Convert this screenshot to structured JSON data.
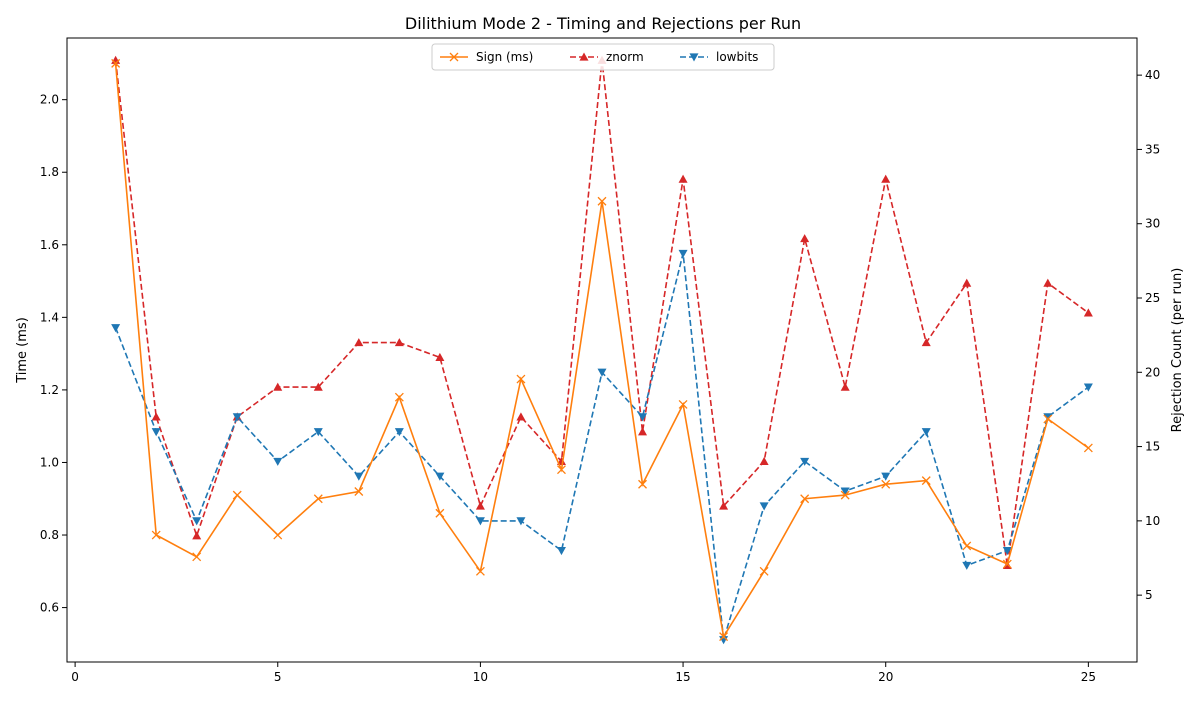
{
  "chart_data": {
    "type": "line",
    "title": "Dilithium Mode 2 - Timing and Rejections per Run",
    "xlabel": "",
    "ylabel_left": "Time (ms)",
    "ylabel_right": "Rejection Count (per run)",
    "xlim": [
      -0.2,
      26.2
    ],
    "ylim_left": [
      0.45,
      2.17
    ],
    "ylim_right": [
      0.5,
      42.5
    ],
    "x_ticks": [
      0,
      5,
      10,
      15,
      20,
      25
    ],
    "y_left_ticks": [
      0.6,
      0.8,
      1.0,
      1.2,
      1.4,
      1.6,
      1.8,
      2.0
    ],
    "y_right_ticks": [
      5,
      10,
      15,
      20,
      25,
      30,
      35,
      40
    ],
    "grid": false,
    "legend_placement": "top-center",
    "x": [
      1,
      2,
      3,
      4,
      5,
      6,
      7,
      8,
      9,
      10,
      11,
      12,
      13,
      14,
      15,
      16,
      17,
      18,
      19,
      20,
      21,
      22,
      23,
      24,
      25
    ],
    "series": [
      {
        "name": "Sign (ms)",
        "axis": "left",
        "color": "#ff7f0e",
        "marker": "x",
        "linestyle": "solid",
        "values": [
          2.1,
          0.8,
          0.74,
          0.91,
          0.8,
          0.9,
          0.92,
          1.18,
          0.86,
          0.7,
          1.23,
          0.98,
          1.72,
          0.94,
          1.16,
          0.52,
          0.7,
          0.9,
          0.91,
          0.94,
          0.95,
          0.77,
          0.72,
          1.12,
          1.04
        ]
      },
      {
        "name": "znorm",
        "axis": "right",
        "color": "#d62728",
        "marker": "triangle-up",
        "linestyle": "dashed",
        "values": [
          41,
          17,
          9,
          17,
          19,
          19,
          22,
          22,
          21,
          11,
          17,
          14,
          41,
          16,
          33,
          11,
          14,
          29,
          19,
          33,
          22,
          26,
          7,
          26,
          24
        ]
      },
      {
        "name": "lowbits",
        "axis": "right",
        "color": "#1f77b4",
        "marker": "triangle-down",
        "linestyle": "dashed",
        "values": [
          23,
          16,
          10,
          17,
          14,
          16,
          13,
          16,
          13,
          10,
          10,
          8,
          20,
          17,
          28,
          2,
          11,
          14,
          12,
          13,
          16,
          7,
          8,
          17,
          19
        ]
      }
    ]
  }
}
